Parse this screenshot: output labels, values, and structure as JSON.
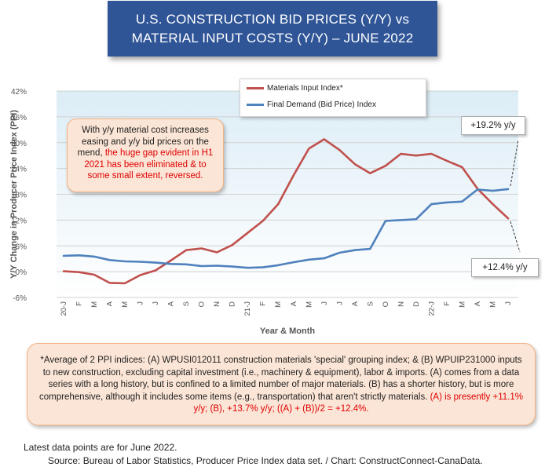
{
  "title": {
    "line1": "U.S. CONSTRUCTION BID PRICES (Y/Y) vs",
    "line2": "MATERIAL INPUT COSTS (Y/Y) –  JUNE 2022"
  },
  "colors": {
    "materials": "#c0504d",
    "final_demand": "#4f81bd",
    "title_bg": "#2f5597",
    "highlight": "#e00000"
  },
  "note": {
    "plain": "With y/y material cost increases easing and y/y bid prices on the mend, ",
    "highlight": "the huge gap evident in H1 2021 has been eliminated & to some small extent, reversed."
  },
  "callouts": {
    "final_demand_last": "+19.2% y/y",
    "materials_last": "+12.4% y/y"
  },
  "footnote": {
    "plain": "*Average of 2 PPI indices: (A) WPUSI012011 construction materials 'special' grouping index; & (B) WPUIP231000 inputs to new construction, excluding capital investment (i.e., machinery & equipment), labor & imports. (A) comes from a data series with a long history, but is confined to a limited number of major materials. (B) has a shorter history, but is more comprehensive, although it includes some items (e.g., transportation) that aren't strictly materials. ",
    "highlight": "(A) is presently +11.1% y/y; (B), +13.7% y/y; ((A) + (B))/2 = +12.4%."
  },
  "latest": "Latest data points are for June 2022.",
  "source": "Source: Bureau of Labor Statistics, Producer Price Index data set. / Chart: ConstructConnect-CanaData.",
  "chart_data": {
    "type": "line",
    "xlabel": "Year & Month",
    "ylabel": "Y/Y Change in Producer Price Index (PPI)",
    "ylim": [
      -6,
      42
    ],
    "yticks": [
      "-6%",
      "0%",
      "6%",
      "12%",
      "18%",
      "24%",
      "30%",
      "36%",
      "42%"
    ],
    "categories": [
      "20-J",
      "F",
      "M",
      "A",
      "M",
      "J",
      "J",
      "A",
      "S",
      "O",
      "N",
      "D",
      "21-J",
      "F",
      "M",
      "A",
      "M",
      "J",
      "J",
      "A",
      "S",
      "O",
      "N",
      "D",
      "22-J",
      "F",
      "M",
      "A",
      "M",
      "J"
    ],
    "series": [
      {
        "name": "Materials Input Index*",
        "values": [
          0.1,
          -0.1,
          -0.7,
          -2.6,
          -2.7,
          -0.8,
          0.3,
          2.6,
          5.0,
          5.4,
          4.5,
          6.2,
          9.0,
          11.8,
          15.7,
          22.4,
          28.6,
          30.8,
          28.3,
          25.0,
          22.9,
          24.6,
          27.4,
          27.0,
          27.4,
          25.8,
          24.3,
          19.3,
          15.7,
          12.4
        ]
      },
      {
        "name": "Final Demand (Bid Price) Index",
        "values": [
          3.7,
          3.8,
          3.5,
          2.7,
          2.4,
          2.3,
          2.1,
          1.8,
          1.7,
          1.3,
          1.4,
          1.2,
          0.9,
          1.0,
          1.5,
          2.2,
          2.8,
          3.1,
          4.4,
          5.0,
          5.3,
          11.8,
          12.0,
          12.2,
          15.7,
          16.1,
          16.3,
          19.1,
          18.8,
          19.2
        ]
      }
    ],
    "grid": true,
    "legend": "top-center"
  }
}
